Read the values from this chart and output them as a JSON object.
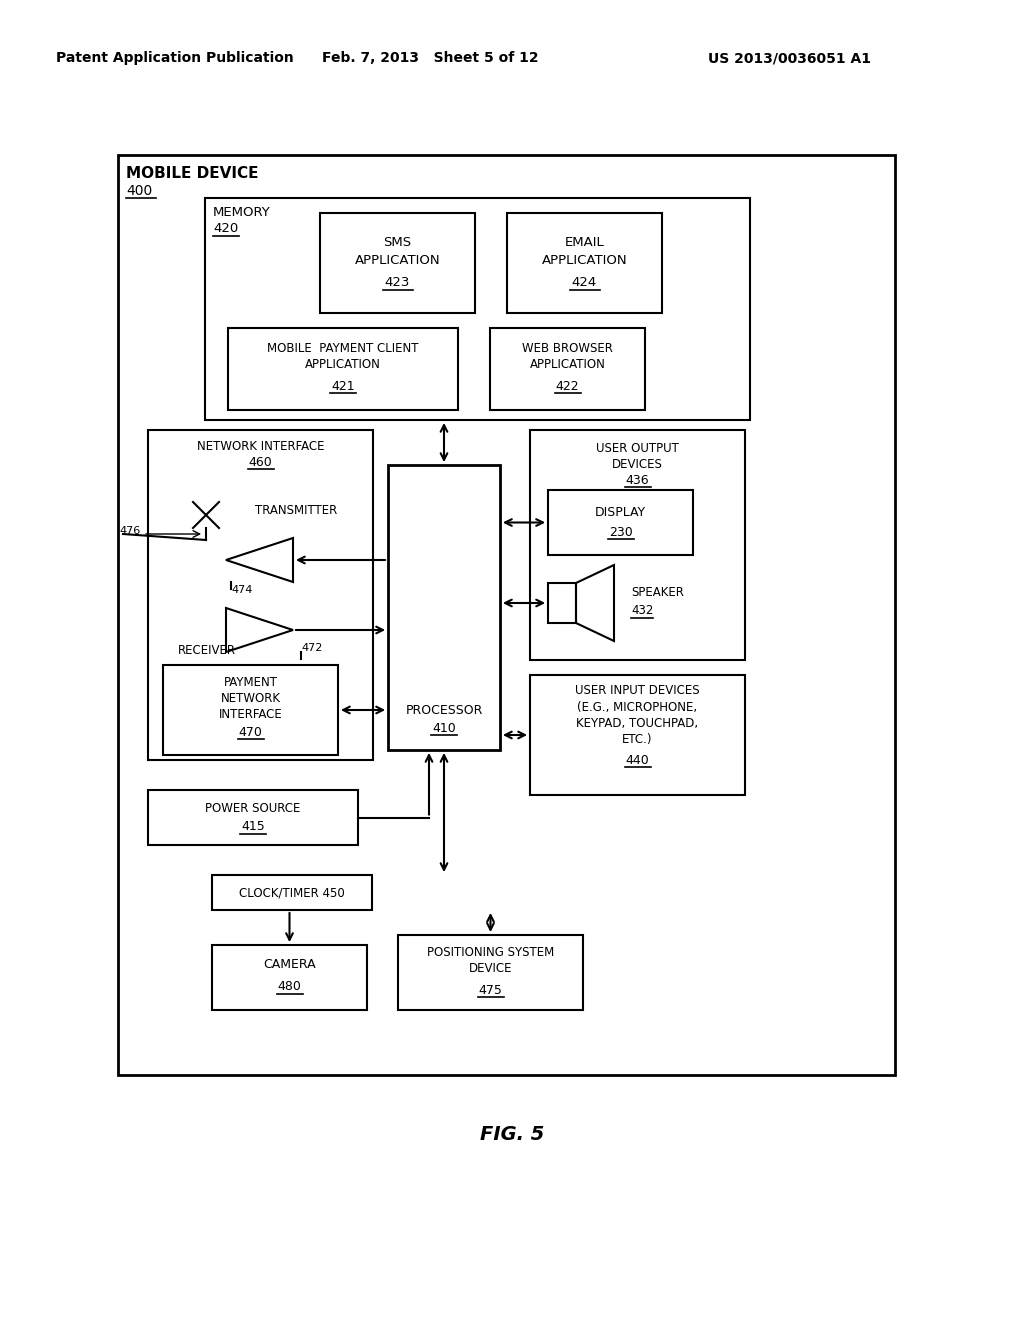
{
  "header_left": "Patent Application Publication",
  "header_mid": "Feb. 7, 2013   Sheet 5 of 12",
  "header_right": "US 2013/0036051 A1",
  "figure_label": "FIG. 5",
  "bg_color": "#ffffff",
  "line_color": "#000000",
  "font_color": "#000000"
}
